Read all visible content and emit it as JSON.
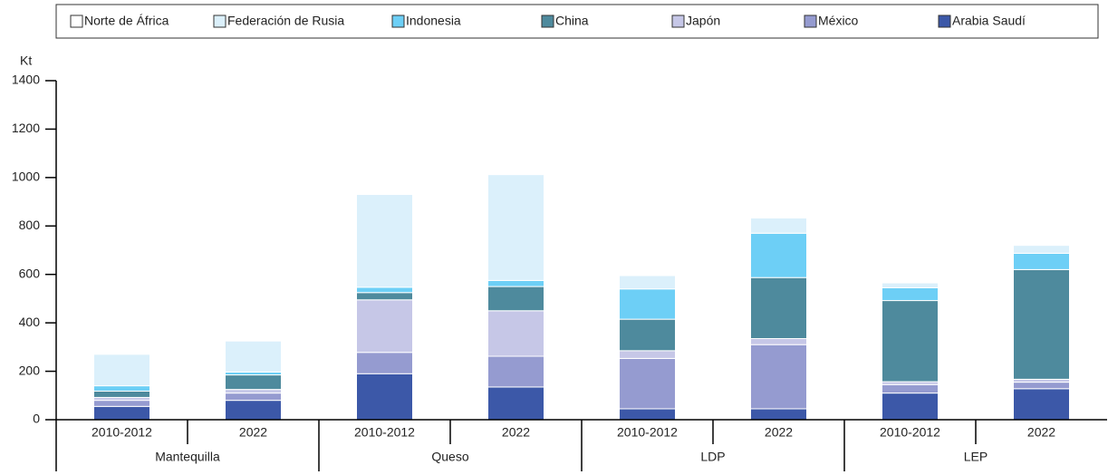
{
  "chart_data": {
    "type": "stacked-bar",
    "y_label": "Kt",
    "categories": [
      "2010-2012",
      "2022",
      "2010-2012",
      "2022",
      "2010-2012",
      "2022",
      "2010-2012",
      "2022"
    ],
    "groups": [
      "Mantequilla",
      "Queso",
      "LDP",
      "LEP"
    ],
    "series": [
      {
        "name": "Norte de África",
        "color": "#ffffff",
        "values": [
          0,
          0,
          0,
          0,
          0,
          0,
          0,
          0
        ]
      },
      {
        "name": "Federación de Rusia",
        "color": "#dbf0fb",
        "values": [
          130,
          128,
          383,
          437,
          55,
          63,
          20,
          33
        ]
      },
      {
        "name": "Indonesia",
        "color": "#6dcff6",
        "values": [
          22,
          12,
          22,
          25,
          125,
          183,
          53,
          67
        ]
      },
      {
        "name": "China",
        "color": "#4e8a9d",
        "values": [
          26,
          60,
          30,
          100,
          130,
          252,
          335,
          453
        ]
      },
      {
        "name": "Japón",
        "color": "#c6c7e7",
        "values": [
          12,
          15,
          217,
          188,
          32,
          25,
          12,
          12
        ]
      },
      {
        "name": "México",
        "color": "#959bd0",
        "values": [
          25,
          30,
          88,
          127,
          208,
          265,
          35,
          27
        ]
      },
      {
        "name": "Arabia Saudí",
        "color": "#3c58a8",
        "values": [
          55,
          80,
          190,
          135,
          45,
          45,
          110,
          128
        ]
      }
    ],
    "ylim": [
      0,
      1400
    ],
    "yticks": [
      0,
      200,
      400,
      600,
      800,
      1000,
      1200,
      1400
    ]
  }
}
